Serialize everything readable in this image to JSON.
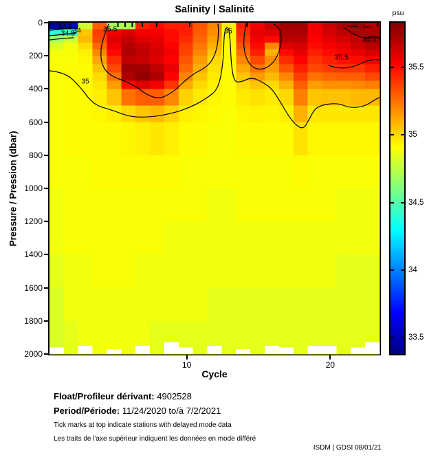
{
  "title": "Salinity | Salinité",
  "colorbar": {
    "unit_label": "psu",
    "cmin": 33.38,
    "cmax": 35.83,
    "ticks": [
      33.5,
      34,
      34.5,
      35,
      35.5
    ]
  },
  "footer": {
    "float_label": "Float/Profileur dérivant:",
    "float_value": "4902528",
    "period_label": "Period/Période:",
    "period_value": "11/24/2020  to/à  7/2/2021",
    "note_en": "Tick marks at top indicate stations with delayed mode data",
    "note_fr": "Les traits de l'axe supérieur indiquent les données en mode différé",
    "credit": "ISDM | GDSI  08/01/21"
  },
  "chart_data": {
    "type": "heatmap",
    "title": "Salinity | Salinité",
    "xlabel": "Cycle",
    "ylabel": "Pressure / Pression (dbar)",
    "x_ticks": [
      10,
      20
    ],
    "y_ticks": [
      0,
      200,
      400,
      600,
      800,
      1000,
      1200,
      1400,
      1600,
      1800,
      2000
    ],
    "x_range": [
      0.43,
      23.43
    ],
    "y_range": [
      0,
      2000
    ],
    "value_range": [
      33.38,
      35.83
    ],
    "cycles": [
      1,
      2,
      3,
      4,
      5,
      6,
      7,
      8,
      9,
      10,
      11,
      12,
      13,
      14,
      15,
      16,
      17,
      18,
      19,
      20,
      21,
      22,
      23
    ],
    "pressure_edges": [
      0,
      40,
      80,
      120,
      160,
      200,
      250,
      300,
      350,
      400,
      500,
      600,
      800,
      1000,
      1200,
      1400,
      1600,
      1800,
      2000
    ],
    "salinity_by_cycle": [
      [
        33.45,
        34.4,
        34.7,
        34.82,
        34.88,
        34.9,
        34.9,
        34.9,
        34.9,
        34.9,
        34.9,
        34.9,
        34.9,
        34.88,
        34.88,
        34.85,
        34.82,
        34.82
      ],
      [
        33.55,
        34.45,
        34.8,
        34.88,
        34.9,
        34.9,
        34.92,
        34.92,
        34.92,
        34.92,
        34.92,
        34.92,
        34.9,
        34.9,
        34.9,
        34.88,
        34.88,
        34.85
      ],
      [
        34.8,
        35.05,
        35.08,
        35.0,
        34.95,
        34.93,
        34.92,
        34.92,
        34.92,
        34.92,
        34.92,
        34.92,
        34.9,
        34.9,
        34.9,
        34.88,
        34.88,
        34.88
      ],
      [
        35.3,
        35.38,
        35.35,
        35.28,
        35.2,
        35.13,
        35.05,
        35.0,
        34.97,
        34.95,
        34.93,
        34.92,
        34.92,
        34.9,
        34.9,
        34.9,
        34.88,
        34.88
      ],
      [
        34.7,
        35.55,
        35.6,
        35.56,
        35.5,
        35.42,
        35.35,
        35.25,
        35.15,
        35.05,
        34.95,
        34.92,
        34.92,
        34.9,
        34.9,
        34.9,
        34.88,
        34.88
      ],
      [
        34.72,
        35.62,
        35.66,
        35.7,
        35.72,
        35.68,
        35.75,
        35.72,
        35.5,
        35.25,
        35.0,
        34.93,
        34.92,
        34.9,
        34.9,
        34.9,
        34.88,
        34.88
      ],
      [
        35.45,
        35.55,
        35.6,
        35.65,
        35.68,
        35.66,
        35.75,
        35.78,
        35.6,
        35.3,
        35.05,
        34.95,
        34.92,
        34.9,
        34.9,
        34.88,
        34.88,
        34.88
      ],
      [
        35.5,
        35.55,
        35.58,
        35.6,
        35.62,
        35.6,
        35.68,
        35.72,
        35.55,
        35.3,
        35.08,
        34.97,
        34.92,
        34.9,
        34.9,
        34.88,
        34.88,
        34.85
      ],
      [
        35.45,
        35.5,
        35.5,
        35.52,
        35.55,
        35.52,
        35.58,
        35.52,
        35.4,
        35.2,
        35.02,
        34.95,
        34.92,
        34.9,
        34.88,
        34.88,
        34.88,
        34.85
      ],
      [
        35.45,
        35.45,
        35.42,
        35.38,
        35.36,
        35.32,
        35.28,
        35.2,
        35.12,
        35.02,
        34.95,
        34.92,
        34.9,
        34.9,
        34.88,
        34.88,
        34.88,
        34.85
      ],
      [
        35.32,
        35.3,
        35.28,
        35.24,
        35.2,
        35.15,
        35.1,
        35.05,
        35.0,
        34.96,
        34.93,
        34.92,
        34.9,
        34.9,
        34.88,
        34.88,
        34.88,
        34.85
      ],
      [
        35.2,
        35.18,
        35.14,
        35.1,
        35.05,
        35.0,
        34.98,
        34.96,
        34.94,
        34.93,
        34.92,
        34.9,
        34.9,
        34.88,
        34.88,
        34.88,
        34.85,
        34.85
      ],
      [
        34.95,
        34.93,
        34.93,
        34.92,
        34.92,
        34.92,
        34.92,
        34.92,
        34.92,
        34.92,
        34.9,
        34.9,
        34.9,
        34.88,
        34.88,
        34.88,
        34.85,
        34.85
      ],
      [
        35.45,
        35.42,
        35.38,
        35.32,
        35.26,
        35.2,
        35.12,
        35.05,
        35.0,
        34.96,
        34.93,
        34.92,
        34.9,
        34.9,
        34.88,
        34.88,
        34.85,
        34.85
      ],
      [
        35.55,
        35.58,
        35.55,
        35.5,
        35.45,
        35.35,
        35.25,
        35.15,
        35.05,
        34.98,
        34.94,
        34.92,
        34.9,
        34.9,
        34.88,
        34.88,
        34.85,
        34.85
      ],
      [
        35.65,
        35.6,
        35.5,
        35.2,
        35.1,
        35.18,
        35.15,
        35.08,
        35.0,
        34.96,
        34.93,
        34.92,
        34.9,
        34.9,
        34.88,
        34.88,
        34.85,
        34.85
      ],
      [
        35.75,
        35.72,
        35.68,
        35.6,
        35.5,
        35.42,
        35.32,
        35.2,
        35.1,
        35.0,
        34.95,
        34.92,
        34.9,
        34.9,
        34.88,
        34.88,
        34.85,
        34.85
      ],
      [
        35.75,
        35.72,
        35.68,
        35.62,
        35.58,
        35.52,
        35.45,
        35.38,
        35.3,
        35.22,
        35.1,
        34.98,
        34.92,
        34.9,
        34.88,
        34.88,
        34.85,
        34.85
      ],
      [
        35.55,
        35.55,
        35.52,
        35.5,
        35.45,
        35.4,
        35.35,
        35.25,
        35.15,
        35.05,
        34.97,
        34.93,
        34.9,
        34.9,
        34.88,
        34.88,
        34.85,
        34.85
      ],
      [
        35.65,
        35.62,
        35.58,
        35.54,
        35.5,
        35.45,
        35.38,
        35.28,
        35.18,
        35.06,
        34.97,
        34.93,
        34.9,
        34.9,
        34.88,
        34.88,
        34.85,
        34.85
      ],
      [
        35.72,
        35.68,
        35.62,
        35.58,
        35.54,
        35.48,
        35.4,
        35.3,
        35.18,
        35.06,
        34.97,
        34.93,
        34.9,
        34.88,
        34.88,
        34.85,
        34.85,
        34.85
      ],
      [
        35.75,
        35.72,
        35.68,
        35.64,
        35.58,
        35.5,
        35.4,
        35.3,
        35.2,
        35.08,
        34.97,
        34.93,
        34.9,
        34.88,
        34.88,
        34.85,
        34.85,
        34.85
      ],
      [
        35.7,
        35.72,
        35.75,
        35.7,
        35.62,
        35.54,
        35.45,
        35.35,
        35.22,
        35.08,
        34.97,
        34.93,
        34.9,
        34.88,
        34.88,
        34.85,
        34.85,
        34.85
      ]
    ],
    "max_pressure_by_cycle": [
      1960,
      2000,
      1950,
      2000,
      1970,
      2000,
      1950,
      2000,
      1930,
      1960,
      2000,
      1950,
      2000,
      1970,
      2000,
      1950,
      1960,
      2000,
      1950,
      1950,
      2000,
      1960,
      1930
    ],
    "delayed_mode_tick_cycles": [
      5.2,
      5.7,
      6.2,
      6.9,
      7.9,
      10.2,
      14.2,
      23.3
    ],
    "contours": [
      {
        "level": 35,
        "points": [
          [
            0.43,
            290
          ],
          [
            1.5,
            300
          ],
          [
            2.5,
            380
          ],
          [
            3.5,
            495
          ],
          [
            4.7,
            525
          ],
          [
            6.1,
            570
          ],
          [
            7.5,
            570
          ],
          [
            9.0,
            548
          ],
          [
            10.4,
            505
          ],
          [
            11.4,
            455
          ],
          [
            12.2,
            400
          ],
          [
            12.55,
            235
          ],
          [
            12.6,
            50
          ],
          [
            12.85,
            20
          ],
          [
            13.0,
            70
          ],
          [
            13.1,
            255
          ],
          [
            13.3,
            355
          ],
          [
            13.75,
            360
          ],
          [
            14.5,
            330
          ],
          [
            15.2,
            355
          ],
          [
            15.9,
            395
          ],
          [
            16.5,
            475
          ],
          [
            17.0,
            550
          ],
          [
            17.5,
            610
          ],
          [
            18.1,
            645
          ],
          [
            18.5,
            590
          ],
          [
            18.9,
            520
          ],
          [
            19.5,
            495
          ],
          [
            20.5,
            485
          ],
          [
            21.4,
            515
          ],
          [
            22.4,
            505
          ],
          [
            23.1,
            465
          ],
          [
            23.45,
            450
          ]
        ]
      },
      {
        "level": 35.5,
        "points": [
          [
            4.55,
            8
          ],
          [
            4.07,
            112
          ],
          [
            3.98,
            216
          ],
          [
            4.26,
            286
          ],
          [
            4.89,
            328
          ],
          [
            5.7,
            353
          ],
          [
            6.47,
            386
          ],
          [
            7.23,
            436
          ],
          [
            8.1,
            461
          ],
          [
            9.05,
            419
          ],
          [
            9.82,
            353
          ],
          [
            10.59,
            303
          ],
          [
            11.16,
            278
          ],
          [
            11.74,
            236
          ],
          [
            12.12,
            154
          ],
          [
            12.22,
            50
          ],
          [
            12.17,
            8
          ]
        ]
      },
      {
        "level": 35.5,
        "points": [
          [
            14.13,
            8
          ],
          [
            13.94,
            91
          ],
          [
            14.03,
            195
          ],
          [
            14.51,
            270
          ],
          [
            15.28,
            286
          ],
          [
            16.04,
            245
          ],
          [
            16.52,
            162
          ],
          [
            16.62,
            70
          ],
          [
            16.33,
            21
          ],
          [
            16.04,
            8
          ]
        ]
      },
      {
        "level": 35.5,
        "points": [
          [
            19.88,
            257
          ],
          [
            20.55,
            278
          ],
          [
            21.65,
            266
          ],
          [
            22.61,
            228
          ],
          [
            23.23,
            220
          ],
          [
            23.45,
            228
          ]
        ]
      },
      {
        "level": 35.5,
        "points": [
          [
            20.93,
            29
          ],
          [
            21.65,
            71
          ],
          [
            22.37,
            95
          ],
          [
            23.09,
            83
          ],
          [
            23.45,
            95
          ]
        ]
      },
      {
        "level": 33.5,
        "points": [
          [
            0.43,
            46
          ],
          [
            1.2,
            40
          ],
          [
            1.9,
            33
          ]
        ]
      },
      {
        "level": 34.5,
        "points": [
          [
            0.43,
            79
          ],
          [
            1.4,
            71
          ],
          [
            2.3,
            62
          ]
        ]
      },
      {
        "level": 34,
        "points": [
          [
            0.43,
            104
          ],
          [
            1.2,
            96
          ],
          [
            2.1,
            91
          ]
        ]
      },
      {
        "level": 35.5,
        "points": [
          [
            21.2,
            21
          ],
          [
            21.9,
            23
          ]
        ],
        "dashed": true
      },
      {
        "level": 35.5,
        "points": [
          [
            22.3,
            25
          ],
          [
            22.85,
            25
          ]
        ],
        "dashed": true
      }
    ],
    "contour_labels": [
      {
        "text": "33.5",
        "c": 1.53,
        "p": 25
      },
      {
        "text": "34",
        "c": 2.35,
        "p": 46
      },
      {
        "text": "34.5",
        "c": 1.72,
        "p": 62
      },
      {
        "text": "35.5",
        "c": 4.65,
        "p": 37
      },
      {
        "text": "35",
        "c": 2.92,
        "p": 353
      },
      {
        "text": "35",
        "c": 12.89,
        "p": 50
      },
      {
        "text": "35.5",
        "c": 20.79,
        "p": 207
      },
      {
        "text": "35.5",
        "c": 22.71,
        "p": 100
      }
    ]
  }
}
